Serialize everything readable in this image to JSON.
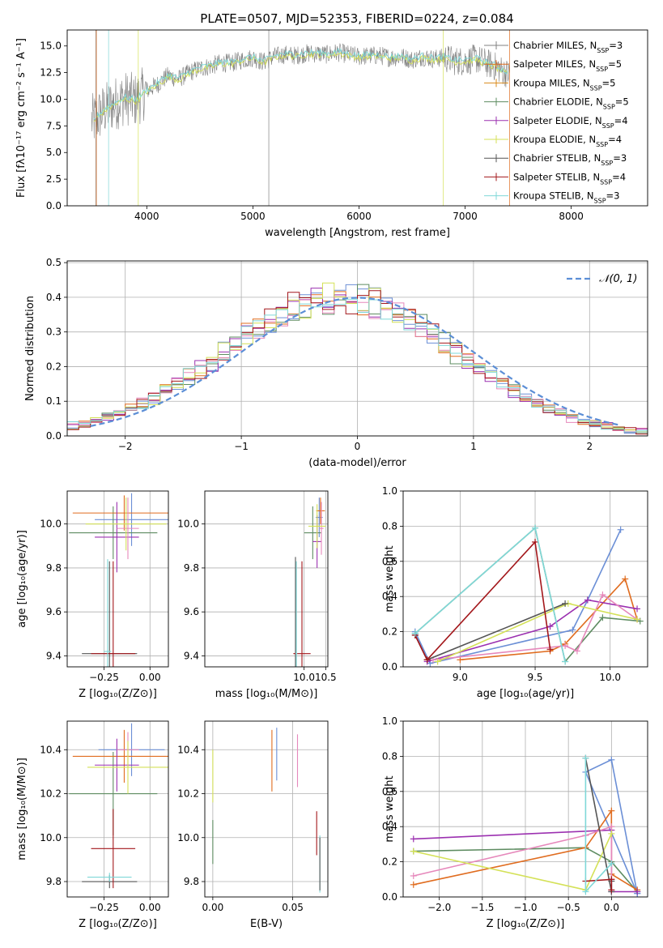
{
  "chart_data": [
    {
      "type": "line",
      "title": "PLATE=0507, MJD=52353, FIBERID=0224, z=0.084",
      "xlabel": "wavelength [Angstrom, rest frame]",
      "ylabel": "Flux [fλ10⁻¹⁷ erg cm⁻² s⁻¹ A⁻¹]",
      "xlim": [
        3250,
        8720
      ],
      "ylim": [
        0,
        16.5
      ],
      "xticks": [
        "4000",
        "5000",
        "6000",
        "7000",
        "8000"
      ],
      "yticks": [
        "0.0",
        "2.5",
        "5.0",
        "7.5",
        "10.0",
        "12.5",
        "15.0"
      ],
      "grid": false,
      "legend_position": "upper right",
      "data": {
        "name": "data",
        "color": "#808080",
        "wavelength": [
          3500,
          3600,
          3700,
          3800,
          3900,
          4000,
          4100,
          4200,
          4300,
          4400,
          4500,
          4600,
          4700,
          4800,
          4900,
          5000,
          5100,
          5200,
          5300,
          5400,
          5500,
          5600,
          5700,
          5800,
          5900,
          6000,
          6100,
          6200,
          6300,
          6400,
          6500,
          6600,
          6700,
          6800,
          6900,
          7000,
          7100,
          7200,
          7300,
          7400
        ],
        "flux": [
          8.0,
          9.0,
          9.6,
          10.1,
          9.9,
          10.8,
          11.4,
          12.2,
          11.9,
          12.5,
          12.9,
          13.1,
          13.4,
          13.4,
          13.7,
          13.9,
          13.5,
          14.0,
          14.2,
          14.1,
          14.3,
          14.3,
          14.2,
          14.4,
          14.2,
          14.0,
          14.1,
          14.1,
          13.9,
          14.0,
          13.7,
          14.0,
          13.8,
          13.9,
          13.6,
          13.6,
          13.8,
          13.4,
          13.0,
          12.4
        ]
      },
      "series": [
        {
          "name": "Chabrier MILES, N_SSP=3",
          "label_prefix": "Chabrier MILES, N",
          "nssp": "3",
          "color": "#808080"
        },
        {
          "name": "Salpeter MILES, N_SSP=5",
          "label_prefix": "Salpeter MILES, N",
          "nssp": "5",
          "color": "#e06c1f"
        },
        {
          "name": "Kroupa MILES, N_SSP=5",
          "label_prefix": "Kroupa MILES, N",
          "nssp": "5",
          "color": "#d98a1a"
        },
        {
          "name": "Chabrier ELODIE, N_SSP=5",
          "label_prefix": "Chabrier ELODIE, N",
          "nssp": "5",
          "color": "#5e8c61"
        },
        {
          "name": "Salpeter ELODIE, N_SSP=4",
          "label_prefix": "Salpeter ELODIE, N",
          "nssp": "4",
          "color": "#9b30b0"
        },
        {
          "name": "Kroupa ELODIE, N_SSP=4",
          "label_prefix": "Kroupa ELODIE, N",
          "nssp": "4",
          "color": "#d4e157"
        },
        {
          "name": "Chabrier STELIB, N_SSP=3",
          "label_prefix": "Chabrier STELIB, N",
          "nssp": "3",
          "color": "#555555"
        },
        {
          "name": "Salpeter STELIB, N_SSP=4",
          "label_prefix": "Salpeter STELIB, N",
          "nssp": "4",
          "color": "#a3171b"
        },
        {
          "name": "Kroupa STELIB, N_SSP=3",
          "label_prefix": "Kroupa STELIB, N",
          "nssp": "3",
          "color": "#7fd8d8"
        }
      ]
    },
    {
      "type": "line",
      "xlabel": "(data-model)/error",
      "ylabel": "Normed distribution",
      "xlim": [
        -2.5,
        2.5
      ],
      "ylim": [
        0,
        0.505
      ],
      "xticks": [
        "−2",
        "−1",
        "0",
        "1",
        "2"
      ],
      "yticks": [
        "0.0",
        "0.1",
        "0.2",
        "0.3",
        "0.4",
        "0.5"
      ],
      "grid": true,
      "legend": "𝒩(0, 1)",
      "legend_position": "upper right",
      "normal_curve": {
        "name": "N(0,1)",
        "mean": 0,
        "sigma": 1,
        "color": "#5b8ed6",
        "style": "dashed"
      },
      "histograms": {
        "bins_from": -2.5,
        "bin_width": 0.1,
        "n_bins": 50,
        "series_colors": [
          "#6b8fd6",
          "#5e8c61",
          "#e06c1f",
          "#9b30b0",
          "#e688bb",
          "#d4e157",
          "#a3171b",
          "#7fd8d8"
        ]
      }
    },
    {
      "type": "scatter",
      "subtype": "errorbar",
      "xlabel": "Z [log₁₀(Z/Z⊙)]",
      "ylabel": "age  [log₁₀(age/yr)]",
      "xlim": [
        -0.45,
        0.1
      ],
      "ylim": [
        9.35,
        10.15
      ],
      "xticks": [
        "−0.25",
        "0.00"
      ],
      "yticks": [
        "9.4",
        "9.6",
        "9.8",
        "10.0"
      ],
      "grid": true,
      "points": [
        {
          "x": -0.1,
          "xerr": 0.2,
          "y": 10.02,
          "yerr": 0.12,
          "color": "#6b8fd6"
        },
        {
          "x": -0.2,
          "xerr": 0.24,
          "y": 9.96,
          "yerr": 0.12,
          "color": "#5e8c61"
        },
        {
          "x": -0.14,
          "xerr": 0.28,
          "y": 10.05,
          "yerr": 0.08,
          "color": "#e06c1f"
        },
        {
          "x": -0.18,
          "xerr": 0.12,
          "y": 9.94,
          "yerr": 0.16,
          "color": "#9b30b0"
        },
        {
          "x": -0.12,
          "xerr": 0.06,
          "y": 9.98,
          "yerr": 0.14,
          "color": "#e688bb"
        },
        {
          "x": -0.13,
          "xerr": 0.22,
          "y": 10.0,
          "yerr": 0.12,
          "color": "#d4e157"
        },
        {
          "x": -0.22,
          "xerr": 0.15,
          "y": 9.41,
          "yerr": 0.42,
          "color": "#555555"
        },
        {
          "x": -0.2,
          "xerr": 0.12,
          "y": 9.41,
          "yerr": 0.42,
          "color": "#a3171b"
        },
        {
          "x": -0.23,
          "xerr": 0.02,
          "y": 9.42,
          "yerr": 0.42,
          "color": "#7fd8d8"
        }
      ]
    },
    {
      "type": "scatter",
      "subtype": "errorbar",
      "xlabel": "mass [log₁₀(M/M⊙)]",
      "xlim": [
        7.7,
        10.55
      ],
      "ylim": [
        9.35,
        10.15
      ],
      "xticks": [
        "10.0",
        "10.5"
      ],
      "yticks": [
        "9.4",
        "9.6",
        "9.8",
        "10.0"
      ],
      "grid": true,
      "points": [
        {
          "x": 10.35,
          "xerr": 0.08,
          "y": 10.03,
          "yerr": 0.09,
          "color": "#6b8fd6"
        },
        {
          "x": 10.2,
          "xerr": 0.2,
          "y": 9.96,
          "yerr": 0.12,
          "color": "#5e8c61"
        },
        {
          "x": 10.38,
          "xerr": 0.1,
          "y": 10.06,
          "yerr": 0.06,
          "color": "#e06c1f"
        },
        {
          "x": 10.3,
          "xerr": 0.1,
          "y": 9.92,
          "yerr": 0.12,
          "color": "#9b30b0"
        },
        {
          "x": 10.4,
          "xerr": 0.05,
          "y": 9.98,
          "yerr": 0.12,
          "color": "#e688bb"
        },
        {
          "x": 10.3,
          "xerr": 0.2,
          "y": 9.99,
          "yerr": 0.1,
          "color": "#d4e157"
        },
        {
          "x": 9.8,
          "xerr": 0.02,
          "y": 9.41,
          "yerr": 0.44,
          "color": "#555555"
        },
        {
          "x": 9.95,
          "xerr": 0.2,
          "y": 9.41,
          "yerr": 0.42,
          "color": "#a3171b"
        },
        {
          "x": 9.82,
          "xerr": 0.02,
          "y": 9.41,
          "yerr": 0.42,
          "color": "#7fd8d8"
        }
      ]
    },
    {
      "type": "line",
      "xlabel": "age  [log₁₀(age/yr)]",
      "ylabel": "mass weight",
      "xlim": [
        8.62,
        10.25
      ],
      "ylim": [
        0,
        1.0
      ],
      "xticks": [
        "9.0",
        "9.5",
        "10.0"
      ],
      "yticks": [
        "0.0",
        "0.2",
        "0.4",
        "0.6",
        "0.8",
        "1.0"
      ],
      "grid": true,
      "series": [
        {
          "color": "#6b8fd6",
          "x": [
            8.7,
            8.8,
            9.75,
            9.85,
            10.07
          ],
          "y": [
            0.2,
            0.02,
            0.21,
            0.38,
            0.78
          ]
        },
        {
          "color": "#5e8c61",
          "x": [
            8.7,
            9.5,
            9.7,
            9.95,
            10.2
          ],
          "y": [
            0.19,
            0.79,
            0.03,
            0.28,
            0.26
          ]
        },
        {
          "color": "#e06c1f",
          "x": [
            9.0,
            9.6,
            9.7,
            10.1,
            10.18
          ],
          "y": [
            0.04,
            0.09,
            0.13,
            0.5,
            0.27
          ]
        },
        {
          "color": "#9b30b0",
          "x": [
            8.78,
            9.6,
            9.85,
            10.18
          ],
          "y": [
            0.03,
            0.23,
            0.38,
            0.33
          ]
        },
        {
          "color": "#e688bb",
          "x": [
            8.82,
            9.7,
            9.78,
            9.95,
            10.18
          ],
          "y": [
            0.04,
            0.12,
            0.09,
            0.41,
            0.27
          ]
        },
        {
          "color": "#d4e157",
          "x": [
            8.85,
            9.72,
            10.18
          ],
          "y": [
            0.03,
            0.36,
            0.27
          ]
        },
        {
          "color": "#555555",
          "x": [
            8.7,
            8.78,
            9.7
          ],
          "y": [
            0.18,
            0.04,
            0.36
          ]
        },
        {
          "color": "#a3171b",
          "x": [
            8.7,
            8.78,
            9.5,
            9.6
          ],
          "y": [
            0.18,
            0.04,
            0.71,
            0.1
          ]
        },
        {
          "color": "#7fd8d8",
          "x": [
            8.7,
            9.5,
            9.7
          ],
          "y": [
            0.19,
            0.79,
            0.03
          ]
        }
      ]
    },
    {
      "type": "scatter",
      "subtype": "errorbar",
      "xlabel": "Z [log₁₀(Z/Z⊙)]",
      "ylabel": "mass [log₁₀(M/M⊙)]",
      "xlim": [
        -0.45,
        0.1
      ],
      "ylim": [
        9.73,
        10.53
      ],
      "xticks": [
        "−0.25",
        "0.00"
      ],
      "yticks": [
        "9.8",
        "10.0",
        "10.2",
        "10.4"
      ],
      "grid": true,
      "points": [
        {
          "x": -0.1,
          "xerr": 0.18,
          "y": 10.4,
          "yerr": 0.12,
          "color": "#6b8fd6"
        },
        {
          "x": -0.2,
          "xerr": 0.24,
          "y": 10.2,
          "yerr": 0.19,
          "color": "#5e8c61"
        },
        {
          "x": -0.14,
          "xerr": 0.28,
          "y": 10.37,
          "yerr": 0.12,
          "color": "#e06c1f"
        },
        {
          "x": -0.18,
          "xerr": 0.12,
          "y": 10.33,
          "yerr": 0.12,
          "color": "#9b30b0"
        },
        {
          "x": -0.12,
          "xerr": 0.06,
          "y": 10.4,
          "yerr": 0.08,
          "color": "#e688bb"
        },
        {
          "x": -0.12,
          "xerr": 0.22,
          "y": 10.32,
          "yerr": 0.12,
          "color": "#d4e157"
        },
        {
          "x": -0.22,
          "xerr": 0.15,
          "y": 9.8,
          "yerr": 0.03,
          "color": "#555555"
        },
        {
          "x": -0.2,
          "xerr": 0.12,
          "y": 9.95,
          "yerr": 0.18,
          "color": "#a3171b"
        },
        {
          "x": -0.22,
          "xerr": 0.12,
          "y": 9.82,
          "yerr": 0.02,
          "color": "#7fd8d8"
        }
      ]
    },
    {
      "type": "scatter",
      "subtype": "errorbar",
      "xlabel": "E(B-V)",
      "xlim": [
        -0.005,
        0.072
      ],
      "ylim": [
        9.73,
        10.53
      ],
      "xticks": [
        "0.00",
        "0.05"
      ],
      "yticks": [
        "9.8",
        "10.0",
        "10.2",
        "10.4"
      ],
      "grid": true,
      "points": [
        {
          "x": 0.0,
          "y": 10.28,
          "yerr": 0.12,
          "color": "#d4e157"
        },
        {
          "x": 0.0,
          "y": 9.98,
          "yerr": 0.1,
          "color": "#5e8c61"
        },
        {
          "x": 0.037,
          "y": 10.35,
          "yerr": 0.14,
          "color": "#e06c1f"
        },
        {
          "x": 0.04,
          "y": 10.38,
          "yerr": 0.12,
          "color": "#6b8fd6"
        },
        {
          "x": 0.053,
          "y": 10.35,
          "yerr": 0.12,
          "color": "#e688bb"
        },
        {
          "x": 0.065,
          "y": 10.02,
          "yerr": 0.1,
          "color": "#a3171b"
        },
        {
          "x": 0.067,
          "y": 9.88,
          "yerr": 0.13,
          "color": "#7fd8d8"
        },
        {
          "x": 0.067,
          "y": 9.88,
          "yerr": 0.12,
          "color": "#555555"
        }
      ]
    },
    {
      "type": "line",
      "xlabel": "Z [log₁₀(Z/Z⊙)]",
      "ylabel": "mass weight",
      "xlim": [
        -2.42,
        0.42
      ],
      "ylim": [
        0,
        1.0
      ],
      "xticks": [
        "−2.0",
        "−1.5",
        "−1.0",
        "−0.5",
        "0.0"
      ],
      "yticks": [
        "0.0",
        "0.2",
        "0.4",
        "0.6",
        "0.8",
        "1.0"
      ],
      "grid": true,
      "series": [
        {
          "color": "#6b8fd6",
          "x": [
            0.3,
            -0.3,
            0.0,
            0.3
          ],
          "y": [
            0.02,
            0.71,
            0.78,
            0.02
          ]
        },
        {
          "color": "#5e8c61",
          "x": [
            -2.3,
            -0.3,
            0.0,
            0.3
          ],
          "y": [
            0.26,
            0.28,
            0.2,
            0.03
          ]
        },
        {
          "color": "#e06c1f",
          "x": [
            -2.3,
            -0.3,
            0.0,
            0.0,
            0.3
          ],
          "y": [
            0.07,
            0.28,
            0.49,
            0.13,
            0.04
          ]
        },
        {
          "color": "#9b30b0",
          "x": [
            -2.3,
            0.0,
            0.0,
            0.3
          ],
          "y": [
            0.33,
            0.38,
            0.03,
            0.03
          ]
        },
        {
          "color": "#e688bb",
          "x": [
            -2.3,
            -0.3,
            0.0,
            0.0
          ],
          "y": [
            0.12,
            0.35,
            0.4,
            0.1
          ]
        },
        {
          "color": "#d4e157",
          "x": [
            -2.3,
            -0.3,
            0.0
          ],
          "y": [
            0.26,
            0.04,
            0.36
          ]
        },
        {
          "color": "#555555",
          "x": [
            -0.3,
            0.0,
            0.0
          ],
          "y": [
            0.79,
            0.03,
            0.09
          ]
        },
        {
          "color": "#a3171b",
          "x": [
            -0.3,
            0.0,
            0.0
          ],
          "y": [
            0.09,
            0.1,
            0.04
          ]
        },
        {
          "color": "#7fd8d8",
          "x": [
            -0.3,
            -0.3,
            0.0
          ],
          "y": [
            0.79,
            0.03,
            0.19
          ]
        }
      ]
    }
  ]
}
